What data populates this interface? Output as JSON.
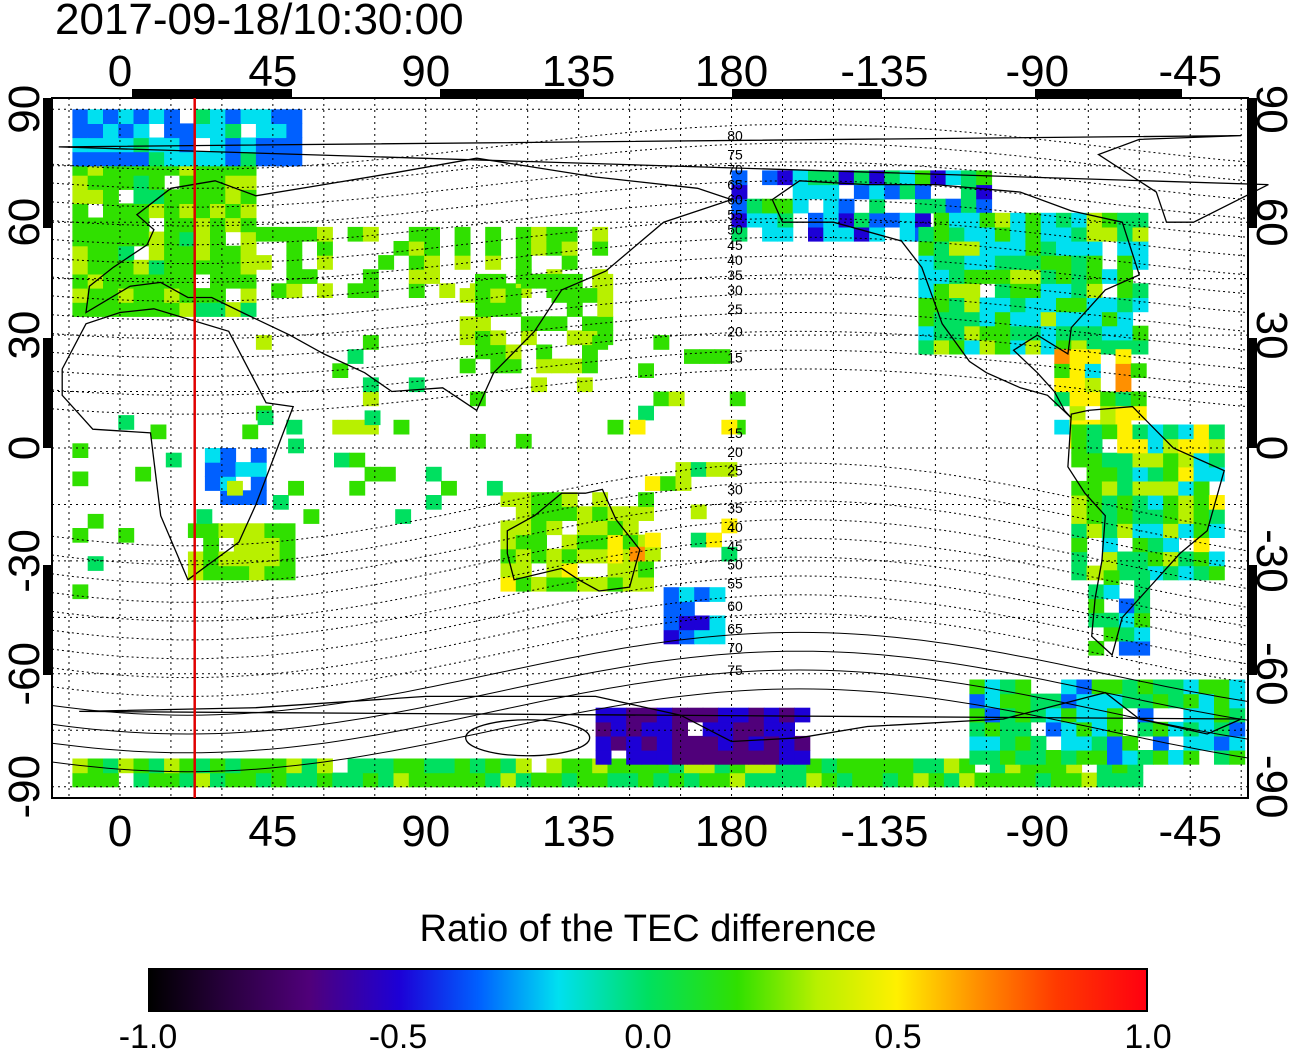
{
  "title": "2017-09-18/10:30:00",
  "map": {
    "lon_labels": [
      "0",
      "45",
      "90",
      "135",
      "180",
      "-135",
      "-90",
      "-45"
    ],
    "lon_values": [
      0,
      45,
      90,
      135,
      180,
      225,
      270,
      315
    ],
    "lat_labels": [
      "90",
      "60",
      "30",
      "0",
      "-30",
      "-60",
      "-90"
    ],
    "lat_values": [
      90,
      60,
      30,
      0,
      -30,
      -60,
      -90
    ],
    "lon_range": [
      -20,
      332
    ],
    "lat_range": [
      -93,
      93
    ],
    "marker_longitude": 22,
    "marker_color": "#e00000",
    "contour_labels": [
      "80",
      "75",
      "70",
      "65",
      "60",
      "55",
      "50",
      "45",
      "40",
      "35",
      "30",
      "25",
      "20",
      "15",
      "15",
      "20",
      "25",
      "30",
      "35",
      "40",
      "45",
      "50",
      "55",
      "60",
      "65",
      "70",
      "75"
    ]
  },
  "colorbar": {
    "title": "Ratio of the TEC difference",
    "ticks": [
      "-1.0",
      "-0.5",
      "0.0",
      "0.5",
      "1.0"
    ],
    "tick_values": [
      -1.0,
      -0.5,
      0.0,
      0.5,
      1.0
    ],
    "range": [
      -1.0,
      1.0
    ],
    "colors": [
      "#000000",
      "#50007a",
      "#1d00d6",
      "#0060ff",
      "#00e0f0",
      "#00e060",
      "#30e000",
      "#b8f000",
      "#fff000",
      "#ff9000",
      "#ff3a00",
      "#ff0010"
    ]
  }
}
